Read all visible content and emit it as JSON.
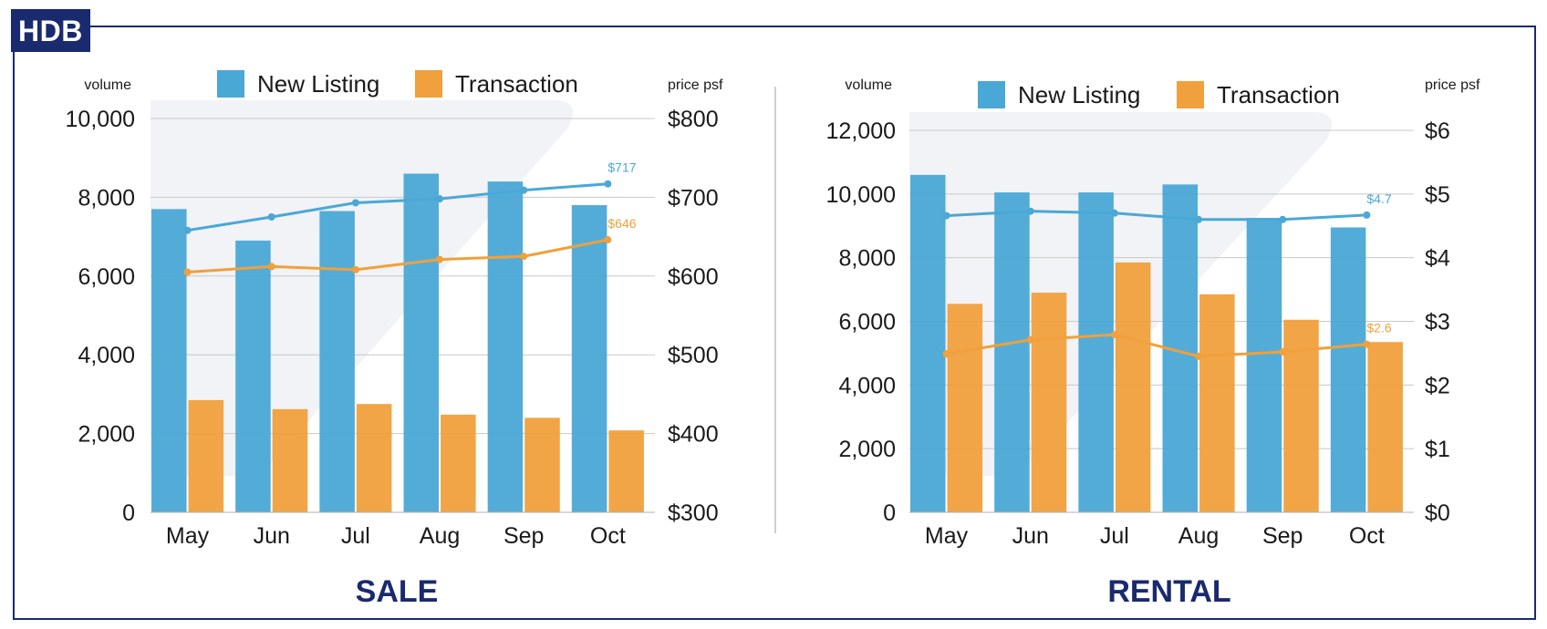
{
  "badge": "HDB",
  "colors": {
    "new_listing": "#4aa8d6",
    "transaction": "#f0a03c",
    "title": "#1a2a6e",
    "grid": "#c8c8c8",
    "text": "#1a1a1a"
  },
  "chart_data": [
    {
      "type": "bar",
      "title": "SALE",
      "left_axis_label": "volume",
      "right_axis_label": "price psf",
      "categories": [
        "May",
        "Jun",
        "Jul",
        "Aug",
        "Sep",
        "Oct"
      ],
      "ylim": [
        0,
        10000
      ],
      "y_ticks": [
        0,
        2000,
        4000,
        6000,
        8000,
        10000
      ],
      "y_tick_labels": [
        "0",
        "2,000",
        "4,000",
        "6,000",
        "8,000",
        "10,000"
      ],
      "y2lim": [
        300,
        800
      ],
      "y2_ticks": [
        300,
        400,
        500,
        600,
        700,
        800
      ],
      "y2_tick_labels": [
        "$300",
        "$400",
        "$500",
        "$600",
        "$700",
        "$800"
      ],
      "legend": [
        "New Listing",
        "Transaction"
      ],
      "series": [
        {
          "name": "New Listing",
          "type": "bar",
          "axis": "left",
          "values": [
            7700,
            6900,
            7650,
            8600,
            8400,
            7800
          ]
        },
        {
          "name": "Transaction",
          "type": "bar",
          "axis": "left",
          "values": [
            2850,
            2620,
            2750,
            2480,
            2400,
            2080
          ]
        },
        {
          "name": "New Listing",
          "type": "line",
          "axis": "right",
          "values": [
            658,
            675,
            693,
            698,
            709,
            717
          ],
          "end_label": "$717"
        },
        {
          "name": "Transaction",
          "type": "line",
          "axis": "right",
          "values": [
            605,
            612,
            608,
            621,
            625,
            646
          ],
          "end_label": "$646"
        }
      ]
    },
    {
      "type": "bar",
      "title": "RENTAL",
      "left_axis_label": "volume",
      "right_axis_label": "price psf",
      "categories": [
        "May",
        "Jun",
        "Jul",
        "Aug",
        "Sep",
        "Oct"
      ],
      "ylim": [
        0,
        12000
      ],
      "y_ticks": [
        0,
        2000,
        4000,
        6000,
        8000,
        10000,
        12000
      ],
      "y_tick_labels": [
        "0",
        "2,000",
        "4,000",
        "6,000",
        "8,000",
        "10,000",
        "12,000"
      ],
      "y2lim": [
        0,
        6
      ],
      "y2_ticks": [
        0,
        1,
        2,
        3,
        4,
        5,
        6
      ],
      "y2_tick_labels": [
        "$0",
        "$1",
        "$2",
        "$3",
        "$4",
        "$5",
        "$6"
      ],
      "legend": [
        "New Listing",
        "Transaction"
      ],
      "series": [
        {
          "name": "New Listing",
          "type": "bar",
          "axis": "left",
          "values": [
            10600,
            10050,
            10050,
            10300,
            9250,
            8950
          ]
        },
        {
          "name": "Transaction",
          "type": "bar",
          "axis": "left",
          "values": [
            6550,
            6900,
            7850,
            6850,
            6050,
            5350
          ]
        },
        {
          "name": "New Listing",
          "type": "line",
          "axis": "right",
          "values": [
            4.66,
            4.73,
            4.7,
            4.6,
            4.6,
            4.67
          ],
          "end_label": "$4.7"
        },
        {
          "name": "Transaction",
          "type": "line",
          "axis": "right",
          "values": [
            2.49,
            2.71,
            2.79,
            2.45,
            2.52,
            2.64
          ],
          "end_label": "$2.6"
        }
      ]
    }
  ]
}
